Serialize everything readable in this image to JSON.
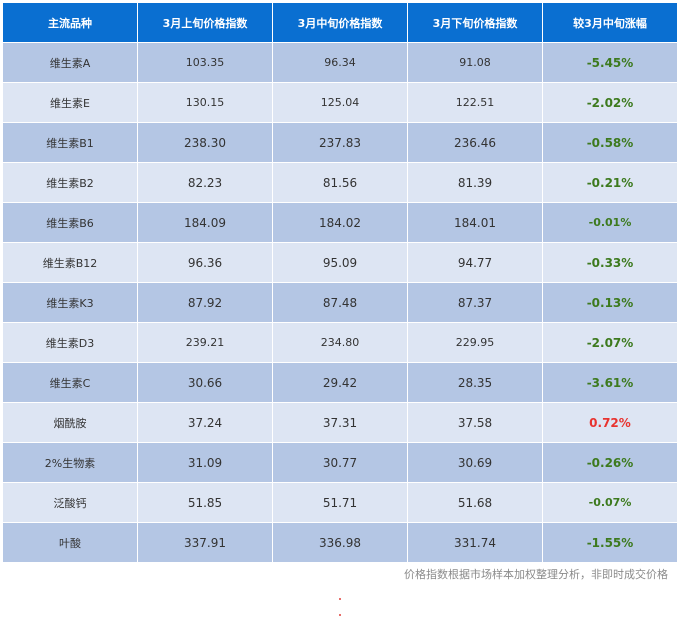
{
  "table": {
    "headers": [
      "主流品种",
      "3月上旬价格指数",
      "3月中旬价格指数",
      "3月下旬价格指数",
      "较3月中旬涨幅"
    ],
    "rows": [
      {
        "name": "维生素A",
        "early": "103.35",
        "mid": "96.34",
        "late": "91.08",
        "change": "-5.45%",
        "dir": "neg"
      },
      {
        "name": "维生素E",
        "early": "130.15",
        "mid": "125.04",
        "late": "122.51",
        "change": "-2.02%",
        "dir": "neg"
      },
      {
        "name": "维生素B1",
        "early": "238.30",
        "mid": "237.83",
        "late": "236.46",
        "change": "-0.58%",
        "dir": "neg"
      },
      {
        "name": "维生素B2",
        "early": "82.23",
        "mid": "81.56",
        "late": "81.39",
        "change": "-0.21%",
        "dir": "neg"
      },
      {
        "name": "维生素B6",
        "early": "184.09",
        "mid": "184.02",
        "late": "184.01",
        "change": "-0.01%",
        "dir": "neg"
      },
      {
        "name": "维生素B12",
        "early": "96.36",
        "mid": "95.09",
        "late": "94.77",
        "change": "-0.33%",
        "dir": "neg"
      },
      {
        "name": "维生素K3",
        "early": "87.92",
        "mid": "87.48",
        "late": "87.37",
        "change": "-0.13%",
        "dir": "neg"
      },
      {
        "name": "维生素D3",
        "early": "239.21",
        "mid": "234.80",
        "late": "229.95",
        "change": "-2.07%",
        "dir": "neg"
      },
      {
        "name": "维生素C",
        "early": "30.66",
        "mid": "29.42",
        "late": "28.35",
        "change": "-3.61%",
        "dir": "neg"
      },
      {
        "name": "烟酰胺",
        "early": "37.24",
        "mid": "37.31",
        "late": "37.58",
        "change": "0.72%",
        "dir": "pos"
      },
      {
        "name": "2%生物素",
        "early": "31.09",
        "mid": "30.77",
        "late": "30.69",
        "change": "-0.26%",
        "dir": "neg"
      },
      {
        "name": "泛酸钙",
        "early": "51.85",
        "mid": "51.71",
        "late": "51.68",
        "change": "-0.07%",
        "dir": "neg"
      },
      {
        "name": "叶酸",
        "early": "337.91",
        "mid": "336.98",
        "late": "331.74",
        "change": "-1.55%",
        "dir": "neg"
      }
    ]
  },
  "footnote": "价格指数根据市场样本加权整理分析，非即时成交价格",
  "colors": {
    "header_bg": "#0a6fd1",
    "row_dark": "#b4c6e4",
    "row_light": "#dde5f3",
    "negative": "#3d7a1e",
    "positive": "#e8332f"
  }
}
